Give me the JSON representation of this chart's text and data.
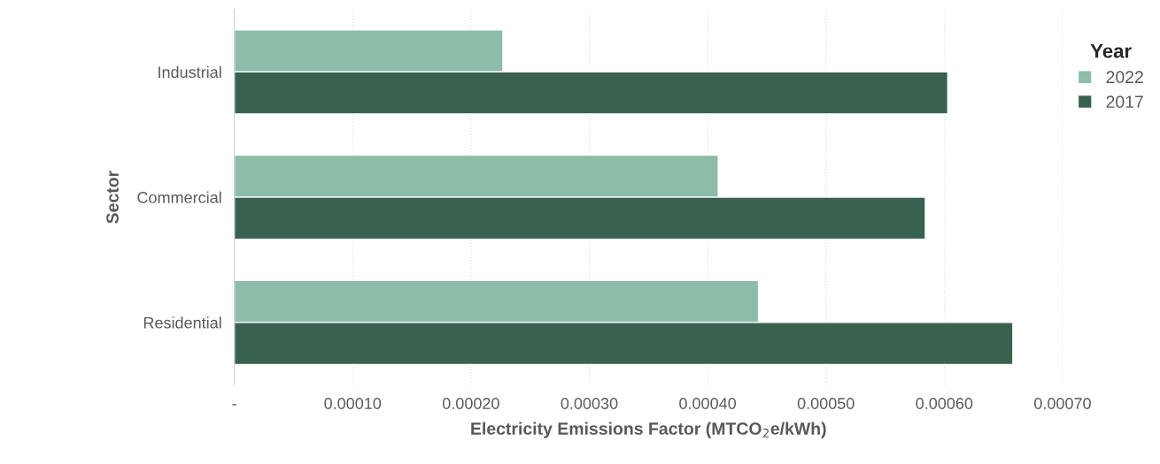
{
  "chart_data": {
    "type": "bar",
    "orientation": "horizontal",
    "xlabel": "Electricity Emissions Factor (MTCO$_{2}$e/kWh)",
    "ylabel": "Sector",
    "legend_title": "Year",
    "categories": [
      "Industrial",
      "Commercial",
      "Residential"
    ],
    "series": [
      {
        "name": "2022",
        "color": "#8dbca8",
        "values": [
          0.000227,
          0.000409,
          0.000443
        ]
      },
      {
        "name": "2017",
        "color": "#386150",
        "values": [
          0.000603,
          0.000584,
          0.000658
        ]
      }
    ],
    "xlim": [
      0,
      0.0007
    ],
    "xticks": [
      {
        "value": 0,
        "label": "-"
      },
      {
        "value": 0.0001,
        "label": "0.00010"
      },
      {
        "value": 0.0002,
        "label": "0.00020"
      },
      {
        "value": 0.0003,
        "label": "0.00030"
      },
      {
        "value": 0.0004,
        "label": "0.00040"
      },
      {
        "value": 0.0005,
        "label": "0.00050"
      },
      {
        "value": 0.0006,
        "label": "0.00060"
      },
      {
        "value": 0.0007,
        "label": "0.00070"
      }
    ],
    "grid": "x",
    "legend": "right"
  }
}
